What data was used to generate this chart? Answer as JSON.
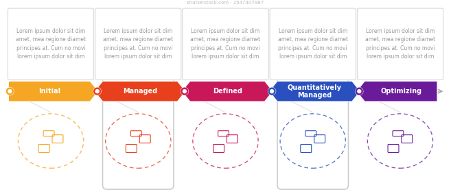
{
  "stages": [
    "Initial",
    "Managed",
    "Defined",
    "Quantitatively\nManaged",
    "Optimizing"
  ],
  "colors": [
    "#F5A623",
    "#E8401C",
    "#C8185A",
    "#2A4FBF",
    "#6A1B9A"
  ],
  "label_text": "Lorem ipsum dolor sit dim\namet, mea regione diamet\nprincipes at. Cum no movi\nlorem ipsum dolor sit dim",
  "bg_color": "#FFFFFF",
  "font_size_label": 5.5,
  "font_size_stage": 7.0,
  "has_tall_border": [
    false,
    true,
    false,
    true,
    false
  ],
  "arrow_colors": [
    "#F5A623",
    "#E8401C",
    "#C8185A",
    "#2A4FBF",
    "#6A1B9A"
  ]
}
